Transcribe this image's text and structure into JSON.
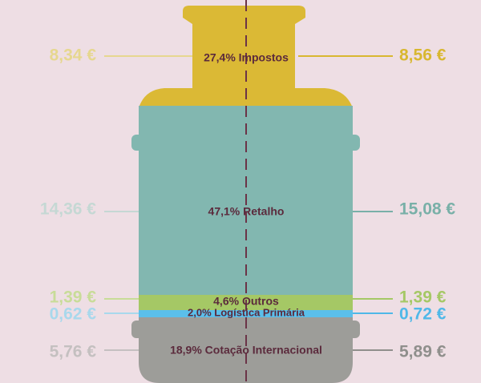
{
  "segments": [
    {
      "label": "27,4% Impostos",
      "before": "8,34 €",
      "after": "8,56 €"
    },
    {
      "label": "47,1% Retalho",
      "before": "14,36 €",
      "after": "15,08 €"
    },
    {
      "label": "4,6% Outros",
      "before": "1,39 €",
      "after": "1,39 €"
    },
    {
      "label": "2,0% Logística Primária",
      "before": "0,62 €",
      "after": "0,72 €"
    },
    {
      "label": "18,9% Cotação Internacional",
      "before": "5,76 €",
      "after": "5,89 €"
    }
  ]
}
